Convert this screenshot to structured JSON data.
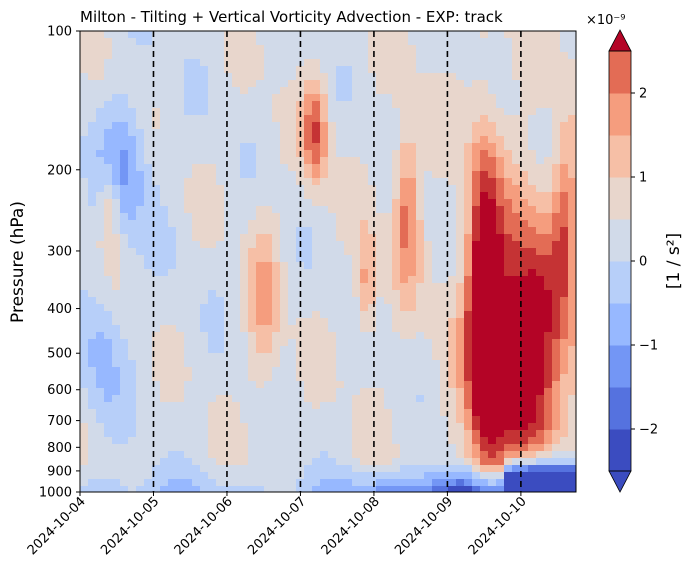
{
  "chart_data": {
    "type": "heatmap",
    "title": "Milton - Tilting + Vertical Vorticity Advection - EXP: track",
    "ylabel": "Pressure (hPa)",
    "y_scale": "log",
    "y_inverted": true,
    "ylim": [
      1000,
      100
    ],
    "y_ticks": [
      100,
      200,
      300,
      400,
      500,
      600,
      700,
      800,
      900,
      1000
    ],
    "y_tick_labels": [
      "100",
      "200",
      "300",
      "400",
      "500",
      "600",
      "700",
      "800",
      "900",
      "1000"
    ],
    "x_tick_labels": [
      "2024-10-04",
      "2024-10-05",
      "2024-10-06",
      "2024-10-07",
      "2024-10-08",
      "2024-10-09",
      "2024-10-10"
    ],
    "xlim": [
      "2024-10-04",
      "2024-10-10T18:00"
    ],
    "day_markers": [
      "2024-10-05",
      "2024-10-06",
      "2024-10-07",
      "2024-10-08",
      "2024-10-09",
      "2024-10-10"
    ],
    "colorbar": {
      "label": "[1 / s²]",
      "exponent_label": "×10⁻⁹",
      "levels": [
        -2.5,
        -2.25,
        -2,
        -1.75,
        -1.5,
        -1.25,
        -1,
        -0.75,
        -0.5,
        -0.25,
        0,
        0.25,
        0.5,
        0.75,
        1,
        1.25,
        1.5,
        1.75,
        2,
        2.25,
        2.5
      ],
      "tick_values": [
        -2,
        -1,
        0,
        1,
        2
      ],
      "tick_labels": [
        "−2",
        "−1",
        "0",
        "1",
        "2"
      ],
      "colors": [
        "#3b4cc0",
        "#5572df",
        "#7396f5",
        "#97b8ff",
        "#b7cff9",
        "#d1dae9",
        "#e8d6cc",
        "#f6bfa6",
        "#f59d7e",
        "#e36c55",
        "#c53334"
      ],
      "under_color": "#3b4cc0",
      "over_color": "#b40426"
    },
    "features": [
      {
        "description": "strong positive tilting+advection core",
        "time_start": "2024-10-09T12:00",
        "time_end": "2024-10-10T18:00",
        "p_top": 270,
        "p_bottom": 900,
        "value": 2.5
      },
      {
        "description": "strong negative layer near surface",
        "time_start": "2024-10-09T12:00",
        "time_end": "2024-10-10T18:00",
        "p_top": 880,
        "p_bottom": 1000,
        "value": -2.5
      },
      {
        "description": "upper-level positive maxima",
        "time": "2024-10-07T00:00",
        "p": 160,
        "value": 2.0
      },
      {
        "description": "upper-level positive maxima",
        "time": "2024-10-08T12:00",
        "p": 280,
        "value": 2.2
      }
    ]
  }
}
